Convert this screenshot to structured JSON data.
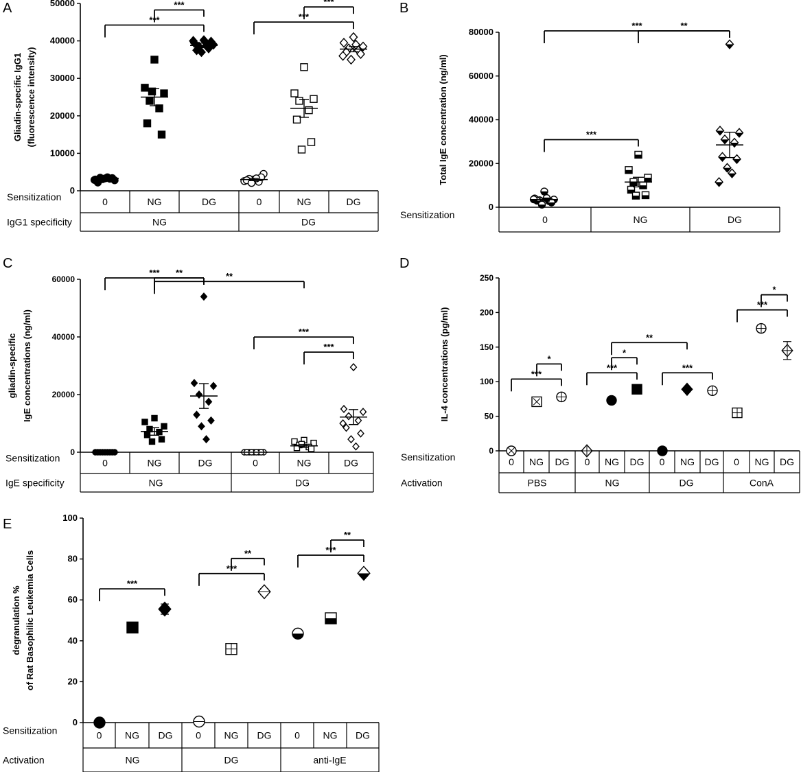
{
  "chart_data": [
    {
      "panel": "A",
      "type": "scatter",
      "ylabel_lines": [
        "Gliadin-specific IgG1",
        "(fluorescence intensity)"
      ],
      "ylim": [
        0,
        50000
      ],
      "yticks": [
        "0",
        "10000",
        "20000",
        "30000",
        "40000",
        "50000"
      ],
      "rows": [
        {
          "label": "Sensitization",
          "cells": [
            "0",
            "NG",
            "DG",
            "0",
            "NG",
            "DG"
          ]
        },
        {
          "label": "IgG1 specificity",
          "cells": [
            "NG",
            "DG"
          ]
        }
      ],
      "marker_styles": [
        "filled-circle",
        "filled-square",
        "filled-diamond",
        "open-circle",
        "open-square",
        "open-diamond"
      ],
      "groups": [
        {
          "x": 1,
          "mean": 3300,
          "sem": 300,
          "points": [
            3300,
            3000,
            2800,
            3500,
            3200,
            2200,
            3400,
            3100,
            3600,
            2900
          ]
        },
        {
          "x": 2,
          "mean": 25000,
          "sem": 2300,
          "points": [
            35000,
            27500,
            26000,
            24000,
            22000,
            18000,
            15000,
            26500
          ]
        },
        {
          "x": 3,
          "mean": 38800,
          "sem": 600,
          "points": [
            40200,
            39500,
            39000,
            38500,
            38000,
            37500,
            39800,
            37000,
            38700,
            40000
          ]
        },
        {
          "x": 4,
          "mean": 3000,
          "sem": 300,
          "points": [
            3000,
            2600,
            4500,
            3200,
            2400,
            2800,
            3600,
            2100,
            3300
          ]
        },
        {
          "x": 5,
          "mean": 22000,
          "sem": 2400,
          "points": [
            33000,
            26000,
            24500,
            24000,
            21500,
            19000,
            13000,
            11000
          ]
        },
        {
          "x": 6,
          "mean": 37800,
          "sem": 700,
          "points": [
            41000,
            39500,
            38500,
            38000,
            37500,
            37000,
            36500,
            35000,
            39000,
            36000
          ]
        }
      ],
      "brackets": [
        {
          "from": 1,
          "to": 3,
          "label": "***"
        },
        {
          "from": 2,
          "to": 3,
          "label": "***"
        },
        {
          "from": 4,
          "to": 6,
          "label": "***"
        },
        {
          "from": 5,
          "to": 6,
          "label": "***"
        }
      ]
    },
    {
      "panel": "B",
      "type": "scatter",
      "ylabel_lines": [
        "Total IgE concentration (ng/ml)"
      ],
      "ylim": [
        0,
        80000
      ],
      "yticks": [
        "0",
        "20000",
        "40000",
        "60000",
        "80000"
      ],
      "rows": [
        {
          "label": "Sensitization",
          "cells": [
            "0",
            "NG",
            "DG"
          ]
        }
      ],
      "marker_styles": [
        "half-circle",
        "half-square",
        "half-diamond"
      ],
      "groups": [
        {
          "x": 1,
          "mean": 3500,
          "sem": 700,
          "points": [
            7200,
            4000,
            3500,
            3200,
            2800,
            3000,
            2200,
            1200,
            4200,
            3600
          ]
        },
        {
          "x": 2,
          "mean": 11500,
          "sem": 2200,
          "points": [
            24000,
            17000,
            13500,
            11500,
            10000,
            8000,
            5500,
            5300
          ]
        },
        {
          "x": 3,
          "mean": 28500,
          "sem": 5800,
          "points": [
            74500,
            35000,
            34000,
            31000,
            29500,
            23000,
            22000,
            18000,
            15500,
            11500
          ]
        }
      ],
      "brackets": [
        {
          "from": 1,
          "to": 3,
          "label": "***"
        },
        {
          "from": 2,
          "to": 3,
          "label": "**"
        },
        {
          "from": 1,
          "to": 2,
          "label": "***"
        }
      ]
    },
    {
      "panel": "C",
      "type": "scatter",
      "ylabel_lines": [
        "gliadin-specific",
        "IgE concentrations (ng/ml)"
      ],
      "ylim": [
        0,
        60000
      ],
      "yticks": [
        "0",
        "20000",
        "40000",
        "60000"
      ],
      "rows": [
        {
          "label": "Sensitization",
          "cells": [
            "0",
            "NG",
            "DG",
            "0",
            "NG",
            "DG"
          ]
        },
        {
          "label": "IgE specificity",
          "cells": [
            "NG",
            "DG"
          ]
        }
      ],
      "marker_styles": [
        "filled-circle",
        "filled-square",
        "filled-diamond",
        "open-circle",
        "open-square",
        "open-diamond"
      ],
      "groups": [
        {
          "x": 1,
          "mean": 0,
          "sem": 0,
          "points": [
            0,
            0,
            0,
            0,
            0,
            0,
            0,
            0,
            0
          ]
        },
        {
          "x": 2,
          "mean": 7200,
          "sem": 1300,
          "points": [
            11800,
            10500,
            9000,
            8000,
            7000,
            6000,
            4500,
            3700
          ]
        },
        {
          "x": 3,
          "mean": 19500,
          "sem": 4300,
          "points": [
            54000,
            24000,
            23000,
            20000,
            17500,
            13000,
            11000,
            9000,
            4500
          ]
        },
        {
          "x": 4,
          "mean": 0,
          "sem": 0,
          "points": [
            0,
            0,
            0,
            0,
            0,
            0,
            0,
            0,
            0
          ]
        },
        {
          "x": 5,
          "mean": 2200,
          "sem": 500,
          "points": [
            4200,
            3700,
            3200,
            2500,
            1800,
            1500,
            1200,
            2800
          ]
        },
        {
          "x": 6,
          "mean": 12200,
          "sem": 2600,
          "points": [
            29500,
            15000,
            14000,
            12500,
            11000,
            8500,
            6500,
            4500,
            2000,
            10000
          ]
        }
      ],
      "brackets": [
        {
          "from": 2,
          "to": 5,
          "label": "**"
        },
        {
          "from": 2,
          "to": 3,
          "label": "**"
        },
        {
          "from": 1,
          "to": 3,
          "label": "***"
        },
        {
          "from": 5,
          "to": 6,
          "label": "***"
        },
        {
          "from": 4,
          "to": 6,
          "label": "***"
        }
      ]
    },
    {
      "panel": "D",
      "type": "scatter",
      "ylabel_lines": [
        "IL-4 concentrations (pg/ml)"
      ],
      "ylim": [
        0,
        250
      ],
      "yticks": [
        "0",
        "50",
        "100",
        "150",
        "200",
        "250"
      ],
      "rows": [
        {
          "label": "Sensitization",
          "cells": [
            "0",
            "NG",
            "DG",
            "0",
            "NG",
            "DG",
            "0",
            "NG",
            "DG",
            "0",
            "NG",
            "DG"
          ]
        },
        {
          "label": "Activation",
          "cells": [
            "PBS",
            "NG",
            "DG",
            "ConA"
          ]
        }
      ],
      "marker_styles": [
        "open-circle-x",
        "open-square-x",
        "open-circle-cross",
        "open-diamond-cross",
        "filled-circle",
        "filled-square",
        "filled-circle",
        "filled-diamond",
        "open-circle-bar",
        "open-square-bar",
        "open-circle-bar",
        "open-diamond-bar"
      ],
      "groups": [
        {
          "x": 1,
          "mean": 0,
          "sem": 0
        },
        {
          "x": 2,
          "mean": 71,
          "sem": 5
        },
        {
          "x": 3,
          "mean": 78,
          "sem": 4
        },
        {
          "x": 4,
          "mean": 0,
          "sem": 0
        },
        {
          "x": 5,
          "mean": 73,
          "sem": 3
        },
        {
          "x": 6,
          "mean": 89,
          "sem": 2
        },
        {
          "x": 7,
          "mean": 0,
          "sem": 0
        },
        {
          "x": 8,
          "mean": 89,
          "sem": 2
        },
        {
          "x": 9,
          "mean": 87,
          "sem": 3
        },
        {
          "x": 10,
          "mean": 55,
          "sem": 5
        },
        {
          "x": 11,
          "mean": 177,
          "sem": 5
        },
        {
          "x": 12,
          "mean": 145,
          "sem": 13
        }
      ],
      "brackets": [
        {
          "from": 1,
          "to": 3,
          "label": "***"
        },
        {
          "from": 2,
          "to": 3,
          "label": "*"
        },
        {
          "from": 4,
          "to": 6,
          "label": "***"
        },
        {
          "from": 5,
          "to": 6,
          "label": "*"
        },
        {
          "from": 5,
          "to": 8,
          "label": "**"
        },
        {
          "from": 7,
          "to": 9,
          "label": "***"
        },
        {
          "from": 10,
          "to": 12,
          "label": "***"
        },
        {
          "from": 11,
          "to": 12,
          "label": "*"
        }
      ]
    },
    {
      "panel": "E",
      "type": "scatter",
      "ylabel_lines": [
        "degranulation %",
        "of Rat Basophilic Leukemia Cells"
      ],
      "ylim": [
        0,
        100
      ],
      "yticks": [
        "0",
        "20",
        "40",
        "60",
        "80",
        "100"
      ],
      "rows": [
        {
          "label": "Sensitization",
          "cells": [
            "0",
            "NG",
            "DG",
            "0",
            "NG",
            "DG",
            "0",
            "NG",
            "DG"
          ]
        },
        {
          "label": "Activation",
          "cells": [
            "NG",
            "DG",
            "anti-IgE"
          ]
        }
      ],
      "marker_styles": [
        "filled-circle",
        "filled-square",
        "filled-diamond",
        "open-circle-line",
        "open-square-bar",
        "open-diamond-line",
        "half-circle",
        "half-square",
        "half-diamond"
      ],
      "groups": [
        {
          "x": 1,
          "mean": 0,
          "sem": 0
        },
        {
          "x": 2,
          "mean": 46.5,
          "sem": 2
        },
        {
          "x": 3,
          "mean": 55.5,
          "sem": 2.5
        },
        {
          "x": 4,
          "mean": 0.5,
          "sem": 0
        },
        {
          "x": 5,
          "mean": 36,
          "sem": 1.5
        },
        {
          "x": 6,
          "mean": 64,
          "sem": 1.5
        },
        {
          "x": 7,
          "mean": 43.5,
          "sem": 1
        },
        {
          "x": 8,
          "mean": 51,
          "sem": 1.5
        },
        {
          "x": 9,
          "mean": 73,
          "sem": 1.5
        }
      ],
      "brackets": [
        {
          "from": 1,
          "to": 3,
          "label": "***"
        },
        {
          "from": 4,
          "to": 6,
          "label": "***"
        },
        {
          "from": 5,
          "to": 6,
          "label": "**"
        },
        {
          "from": 7,
          "to": 9,
          "label": "***"
        },
        {
          "from": 8,
          "to": 9,
          "label": "**"
        }
      ]
    }
  ]
}
